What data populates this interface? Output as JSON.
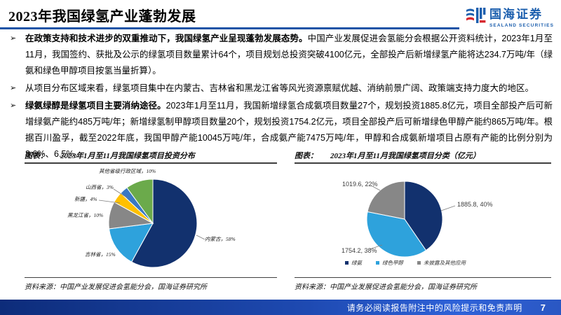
{
  "page": {
    "title": "2023年我国绿氢产业蓬勃发展",
    "bullet_marker": "➢",
    "footer": {
      "disclaimer": "请务必阅读报告附注中的风险提示和免责声明",
      "page_number": "7"
    }
  },
  "brand": {
    "name_cn": "国海证券",
    "name_en": "SEALAND SECURITIES",
    "blue": "#1c5fae",
    "red": "#d7282f"
  },
  "bullets": [
    {
      "lead": "在政策支持和技术进步的双重推动下，我国绿氢产业呈现蓬勃发展态势。",
      "rest": "中国产业发展促进会氢能分会根据公开资料统计，2023年1月至11月，我国签约、获批及公示的绿氢项目数量累计64个，项目规划总投资突破4100亿元，全部投产后新增绿氢产能将达234.7万吨/年（绿氨和绿色甲醇项目按氢当量折算）。"
    },
    {
      "lead": "",
      "rest": "从项目分布区域来看，绿氢项目集中在内蒙古、吉林省和黑龙江省等风光资源禀赋优越、消纳前景广阔、政策端支持力度大的地区。"
    },
    {
      "lead": "绿氨绿醇是绿氢项目主要消纳途径。",
      "rest": "2023年1月至11月，我国新增绿氢合成氨项目数量27个，规划投资1885.8亿元，项目全部投产后可新增绿氨产能约485万吨/年；新增绿氢制甲醇项目数量20个，规划投资1754.2亿元，项目全部投产后可新增绿色甲醇产能约865万吨/年。根据百川盈孚，截至2022年底，我国甲醇产能10045万吨/年，合成氨产能7475万吨/年，甲醇和合成氨新增项目占原有产能的比例分别为8.6%、6.5%。"
    }
  ],
  "charts": [
    {
      "prefix": "图表：",
      "title": "2023年1月至11月我国绿氢项目投资分布",
      "source": "资料来源：中国产业发展促进会氢能分会，国海证券研究所"
    },
    {
      "prefix": "图表：",
      "title": "2023年1月至11月我国绿氢项目分类（亿元）",
      "source": "资料来源：中国产业发展促进会氢能分会，国海证券研究所"
    }
  ],
  "chart_data": [
    {
      "type": "pie",
      "title": "2023年1月至11月我国绿氢项目投资分布",
      "labels": [
        "内蒙古",
        "吉林省",
        "黑龙江省",
        "新疆",
        "山西省",
        "其他省级行政区域"
      ],
      "values": [
        58,
        15,
        10,
        4,
        3,
        10
      ],
      "unit": "%",
      "colors": [
        "#12316e",
        "#2ea2dc",
        "#878787",
        "#ffc000",
        "#3a78c3",
        "#6baa4b"
      ],
      "slice_labels": [
        "内蒙古，58%",
        "吉林省，15%",
        "黑龙江省，10%",
        "新疆，4%",
        "山西省，3%",
        "其他省级行政区域，10%"
      ],
      "legend_position": "none",
      "start": "12-oclock-clockwise"
    },
    {
      "type": "pie",
      "title": "2023年1月至11月我国绿氢项目分类（亿元）",
      "labels": [
        "绿氨",
        "绿色甲醇",
        "未披露及其他应用"
      ],
      "values": [
        1885.8,
        1754.2,
        1019.6
      ],
      "percents": [
        40,
        38,
        22
      ],
      "unit": "亿元",
      "colors": [
        "#12316e",
        "#2ea2dc",
        "#878787"
      ],
      "slice_labels": [
        "1885.8, 40%",
        "1754.2, 38%",
        "1019.6, 22%"
      ],
      "legend": [
        "绿氨",
        "绿色甲醇",
        "未披露及其他应用"
      ],
      "legend_position": "bottom",
      "start": "12-oclock-clockwise"
    }
  ]
}
